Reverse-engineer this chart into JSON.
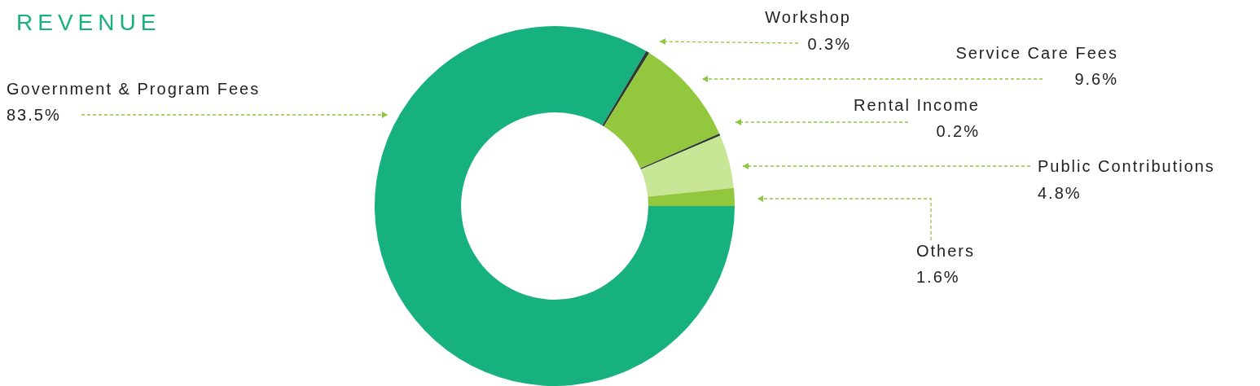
{
  "chart_data": {
    "type": "donut",
    "title": "REVENUE",
    "categories": [
      "Government & Program Fees",
      "Workshop",
      "Service Care Fees",
      "Rental Income",
      "Public Contributions",
      "Others"
    ],
    "values": [
      83.5,
      0.3,
      9.6,
      0.2,
      4.8,
      1.6
    ],
    "value_labels": [
      "83.5%",
      "0.3%",
      "9.6%",
      "0.2%",
      "4.8%",
      "1.6%"
    ],
    "colors": [
      "#17b07f",
      "#2e3b32",
      "#93c83e",
      "#2e3b32",
      "#c8e796",
      "#93c83e"
    ]
  }
}
